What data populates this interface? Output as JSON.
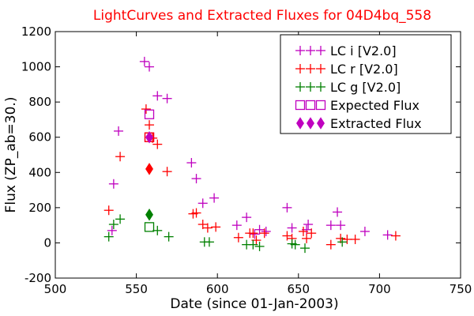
{
  "chart_data": {
    "type": "scatter",
    "title": "LightCurves and Extracted Fluxes for 04D4bq_558",
    "title_color": "#ff0000",
    "xlabel": "Date (since 01-Jan-2003)",
    "ylabel": "Flux (ZP_ab=30.)",
    "xlim": [
      500,
      750
    ],
    "ylim": [
      -200,
      1200
    ],
    "xticks": [
      500,
      550,
      600,
      650,
      700,
      750
    ],
    "yticks": [
      -200,
      0,
      200,
      400,
      600,
      800,
      1000,
      1200
    ],
    "grid": false,
    "legend_position": "top-right",
    "series": [
      {
        "name": "LC i [V2.0]",
        "marker": "plus",
        "color": "#bf00bf",
        "points": [
          [
            535,
            70
          ],
          [
            536,
            335
          ],
          [
            539,
            635
          ],
          [
            555,
            1030
          ],
          [
            558,
            1000
          ],
          [
            563,
            835
          ],
          [
            569,
            820
          ],
          [
            584,
            455
          ],
          [
            587,
            365
          ],
          [
            591,
            225
          ],
          [
            598,
            255
          ],
          [
            612,
            100
          ],
          [
            618,
            145
          ],
          [
            623,
            50
          ],
          [
            626,
            75
          ],
          [
            630,
            65
          ],
          [
            643,
            200
          ],
          [
            646,
            85
          ],
          [
            655,
            75
          ],
          [
            656,
            105
          ],
          [
            670,
            100
          ],
          [
            674,
            175
          ],
          [
            676,
            100
          ],
          [
            691,
            65
          ],
          [
            705,
            45
          ]
        ]
      },
      {
        "name": "LC r [V2.0]",
        "marker": "plus",
        "color": "#ff0000",
        "points": [
          [
            533,
            185
          ],
          [
            540,
            490
          ],
          [
            556,
            760
          ],
          [
            558,
            670
          ],
          [
            560,
            595
          ],
          [
            563,
            560
          ],
          [
            569,
            405
          ],
          [
            585,
            165
          ],
          [
            587,
            170
          ],
          [
            591,
            105
          ],
          [
            594,
            85
          ],
          [
            599,
            90
          ],
          [
            613,
            30
          ],
          [
            620,
            55
          ],
          [
            622,
            55
          ],
          [
            624,
            15
          ],
          [
            629,
            55
          ],
          [
            643,
            40
          ],
          [
            646,
            25
          ],
          [
            653,
            65
          ],
          [
            655,
            25
          ],
          [
            658,
            55
          ],
          [
            670,
            -10
          ],
          [
            676,
            25
          ],
          [
            680,
            20
          ],
          [
            685,
            20
          ],
          [
            710,
            40
          ]
        ]
      },
      {
        "name": "LC g [V2.0]",
        "marker": "plus",
        "color": "#008000",
        "points": [
          [
            533,
            35
          ],
          [
            536,
            105
          ],
          [
            540,
            135
          ],
          [
            563,
            70
          ],
          [
            570,
            35
          ],
          [
            592,
            5
          ],
          [
            595,
            5
          ],
          [
            618,
            -10
          ],
          [
            622,
            -10
          ],
          [
            626,
            -20
          ],
          [
            646,
            -5
          ],
          [
            648,
            -10
          ],
          [
            654,
            -30
          ],
          [
            677,
            5
          ]
        ]
      },
      {
        "name": "Expected Flux",
        "marker": "square-open",
        "color": "#bf00bf",
        "points": [
          [
            558,
            730
          ],
          [
            558,
            600
          ]
        ]
      },
      {
        "name": "Expected Flux (g)",
        "marker": "square-open",
        "color": "#008000",
        "points": [
          [
            558,
            90
          ]
        ]
      },
      {
        "name": "Expected Flux (r)",
        "marker": "square-open",
        "color": "#ff0000",
        "points": [
          [
            558,
            600
          ]
        ]
      },
      {
        "name": "Extracted Flux",
        "marker": "diamond",
        "color": "#bf00bf",
        "points": [
          [
            558,
            600
          ]
        ]
      },
      {
        "name": "Extracted Flux (r)",
        "marker": "diamond",
        "color": "#ff0000",
        "points": [
          [
            558,
            420
          ]
        ]
      },
      {
        "name": "Extracted Flux (g)",
        "marker": "diamond",
        "color": "#008000",
        "points": [
          [
            558,
            160
          ]
        ]
      }
    ],
    "legend": [
      {
        "label": "LC i [V2.0]",
        "marker": "plus",
        "color": "#bf00bf"
      },
      {
        "label": "LC r [V2.0]",
        "marker": "plus",
        "color": "#ff0000"
      },
      {
        "label": "LC g [V2.0]",
        "marker": "plus",
        "color": "#008000"
      },
      {
        "label": "Expected Flux",
        "marker": "square-open",
        "color": "#bf00bf"
      },
      {
        "label": "Extracted Flux",
        "marker": "diamond",
        "color": "#bf00bf"
      }
    ]
  }
}
